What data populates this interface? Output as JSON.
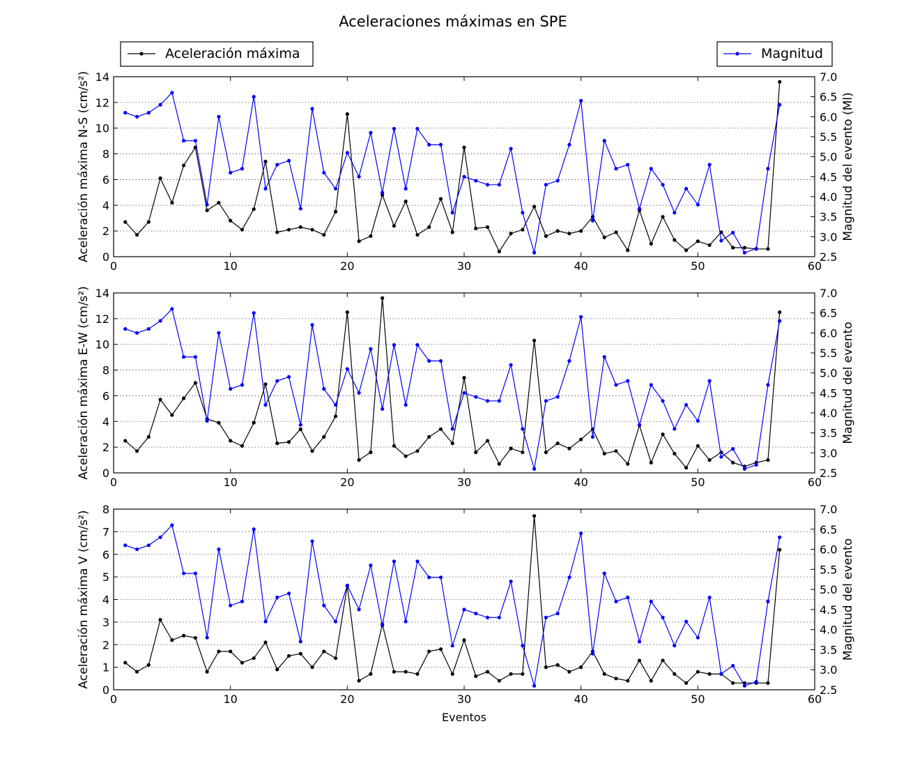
{
  "figure_title": "Aceleraciones máximas en SPE",
  "legend": {
    "left_label": "Aceleración máxima",
    "right_label": "Magnitud"
  },
  "colors": {
    "acceleration": "#000000",
    "magnitude": "#0000ff"
  },
  "chart_data": {
    "type": "line",
    "title": "Aceleraciones máximas en SPE",
    "xlabel": "Eventos",
    "x": [
      1,
      2,
      3,
      4,
      5,
      6,
      7,
      8,
      9,
      10,
      11,
      12,
      13,
      14,
      15,
      16,
      17,
      18,
      19,
      20,
      21,
      22,
      23,
      24,
      25,
      26,
      27,
      28,
      29,
      30,
      31,
      32,
      33,
      34,
      35,
      36,
      37,
      38,
      39,
      40,
      41,
      42,
      43,
      44,
      45,
      46,
      47,
      48,
      49,
      50,
      51,
      52,
      53,
      54,
      55,
      56,
      57
    ],
    "xlim": [
      0,
      60
    ],
    "xticks": [
      "0",
      "10",
      "20",
      "30",
      "40",
      "50",
      "60"
    ],
    "magnitude": [
      6.1,
      6.0,
      6.1,
      6.3,
      6.6,
      5.4,
      5.4,
      3.8,
      6.0,
      4.6,
      4.7,
      6.5,
      4.2,
      4.8,
      4.9,
      3.7,
      6.2,
      4.6,
      4.2,
      5.1,
      4.5,
      5.6,
      4.1,
      5.7,
      4.2,
      5.7,
      5.3,
      5.3,
      3.6,
      4.5,
      4.4,
      4.3,
      4.3,
      5.2,
      3.6,
      2.6,
      4.3,
      4.4,
      5.3,
      6.4,
      3.4,
      5.4,
      4.7,
      4.8,
      3.7,
      4.7,
      4.3,
      3.6,
      4.2,
      3.8,
      4.8,
      2.9,
      3.1,
      2.6,
      2.7,
      4.7,
      6.3
    ],
    "magnitude_ylim": [
      2.5,
      7.0
    ],
    "magnitude_yticks": [
      "2.5",
      "3.0",
      "3.5",
      "4.0",
      "4.5",
      "5.0",
      "5.5",
      "6.0",
      "6.5",
      "7.0"
    ],
    "panels": [
      {
        "id": "ns",
        "ylabel": "Aceleración máxima N-S (cm/s²)",
        "ylabel_right": "Magnitud del evento (Ml)",
        "ylim": [
          0,
          14
        ],
        "yticks": [
          "0",
          "2",
          "4",
          "6",
          "8",
          "10",
          "12",
          "14"
        ],
        "acceleration": [
          2.7,
          1.7,
          2.7,
          6.1,
          4.2,
          7.1,
          8.5,
          3.6,
          4.2,
          2.8,
          2.1,
          3.7,
          7.4,
          1.9,
          2.1,
          2.3,
          2.1,
          1.7,
          3.5,
          11.1,
          1.2,
          1.6,
          4.8,
          2.4,
          4.3,
          1.7,
          2.3,
          4.5,
          1.9,
          8.5,
          2.2,
          2.3,
          0.4,
          1.8,
          2.1,
          3.9,
          1.6,
          2.0,
          1.8,
          2.0,
          3.1,
          1.5,
          1.9,
          0.5,
          3.6,
          1.0,
          3.1,
          1.3,
          0.5,
          1.2,
          0.9,
          1.9,
          0.7,
          0.7,
          0.6,
          0.6,
          13.6
        ]
      },
      {
        "id": "ew",
        "ylabel": "Aceleración máxima E-W (cm/s²)",
        "ylabel_right": "Magnitud del evento",
        "ylim": [
          0,
          14
        ],
        "yticks": [
          "0",
          "2",
          "4",
          "6",
          "8",
          "10",
          "12",
          "14"
        ],
        "acceleration": [
          2.5,
          1.7,
          2.8,
          5.7,
          4.5,
          5.8,
          7.0,
          4.2,
          3.9,
          2.5,
          2.1,
          3.9,
          6.9,
          2.3,
          2.4,
          3.4,
          1.7,
          2.8,
          4.4,
          12.5,
          1.0,
          1.6,
          13.6,
          2.1,
          1.3,
          1.7,
          2.8,
          3.4,
          2.3,
          7.4,
          1.6,
          2.5,
          0.7,
          1.9,
          1.6,
          10.3,
          1.6,
          2.3,
          1.9,
          2.6,
          3.4,
          1.5,
          1.7,
          0.7,
          3.7,
          0.8,
          3.0,
          1.5,
          0.4,
          2.1,
          1.0,
          1.6,
          0.8,
          0.5,
          0.8,
          1.0,
          12.5
        ]
      },
      {
        "id": "v",
        "ylabel": "Aceleración máxima V (cm/s²)",
        "ylabel_right": "Magnitud del evento",
        "ylim": [
          0,
          8
        ],
        "yticks": [
          "0",
          "1",
          "2",
          "3",
          "4",
          "5",
          "6",
          "7",
          "8"
        ],
        "acceleration": [
          1.2,
          0.8,
          1.1,
          3.1,
          2.2,
          2.4,
          2.3,
          0.8,
          1.7,
          1.7,
          1.2,
          1.4,
          2.1,
          0.9,
          1.5,
          1.6,
          1.0,
          1.7,
          1.4,
          4.6,
          0.4,
          0.7,
          2.9,
          0.8,
          0.8,
          0.7,
          1.7,
          1.8,
          0.7,
          2.2,
          0.6,
          0.8,
          0.4,
          0.7,
          0.7,
          7.7,
          1.0,
          1.1,
          0.8,
          1.0,
          1.7,
          0.7,
          0.5,
          0.4,
          1.3,
          0.4,
          1.3,
          0.7,
          0.3,
          0.8,
          0.7,
          0.7,
          0.3,
          0.3,
          0.3,
          0.3,
          6.2
        ]
      }
    ]
  }
}
